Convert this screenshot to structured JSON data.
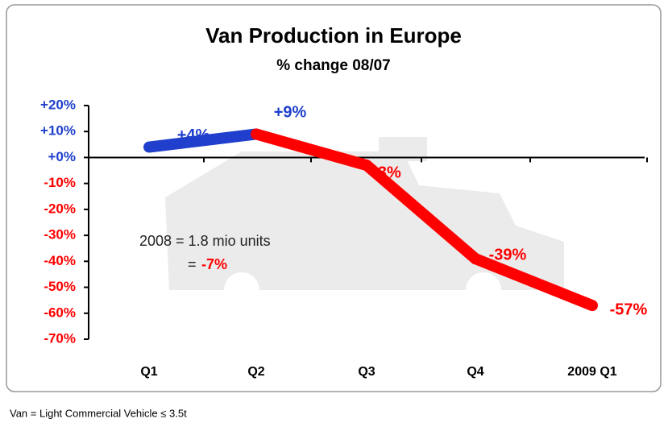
{
  "chart_data": {
    "type": "line",
    "title": "Van Production in Europe",
    "subtitle": "% change 08/07",
    "categories": [
      "Q1",
      "Q2",
      "Q3",
      "Q4",
      "2009 Q1"
    ],
    "values": [
      4,
      9,
      -3,
      -39,
      -57
    ],
    "value_labels": [
      "+4%",
      "+9%",
      "-3%",
      "-39%",
      "-57%"
    ],
    "positive_color": "#1f3fcc",
    "negative_color": "#ff0000",
    "ylim": [
      -70,
      20
    ],
    "yticks": [
      {
        "value": 20,
        "label": "+20%"
      },
      {
        "value": 10,
        "label": "+10%"
      },
      {
        "value": 0,
        "label": "+0%"
      },
      {
        "value": -10,
        "label": "-10%"
      },
      {
        "value": -20,
        "label": "-20%"
      },
      {
        "value": -30,
        "label": "-30%"
      },
      {
        "value": -40,
        "label": "-40%"
      },
      {
        "value": -50,
        "label": "-50%"
      },
      {
        "value": -60,
        "label": "-60%"
      },
      {
        "value": -70,
        "label": "-70%"
      }
    ],
    "annotation": {
      "text": "2008 = 1.8 mio units",
      "equals": "=",
      "value": -7,
      "value_label": "-7%"
    },
    "footnote": "Van = Light Commercial Vehicle ≤ 3.5t"
  }
}
